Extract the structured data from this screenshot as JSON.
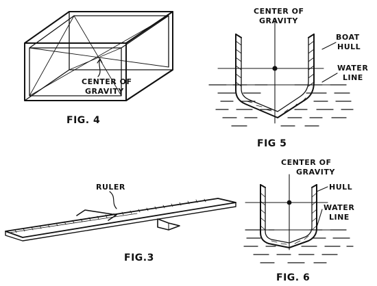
{
  "figures": {
    "fig4": {
      "caption": "FIG. 4",
      "label_line1": "CENTER OF",
      "label_line2": "GRAVITY"
    },
    "fig5": {
      "caption": "FIG 5",
      "cg_line1": "CENTER OF",
      "cg_line2": "GRAVITY",
      "hull_line1": "BOAT",
      "hull_line2": "HULL",
      "water_line1": "WATER",
      "water_line2": "LINE"
    },
    "fig3": {
      "caption": "FIG.3",
      "ruler_label": "RULER"
    },
    "fig6": {
      "caption": "FIG. 6",
      "cg_line1": "CENTER OF",
      "cg_line2": "GRAVITY",
      "hull_label": "HULL",
      "water_line1": "WATER",
      "water_line2": "LINE"
    }
  }
}
